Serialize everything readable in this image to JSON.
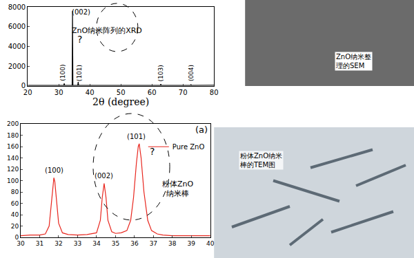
{
  "chart_data": [
    {
      "type": "line",
      "xlabel": "2θ (degree)",
      "x": [
        20,
        31.6,
        31.77,
        31.9,
        34.3,
        34.42,
        34.55,
        36.1,
        36.25,
        36.4,
        62.7,
        62.86,
        63.0,
        72.4,
        72.56,
        72.7,
        80
      ],
      "values": [
        60,
        60,
        250,
        60,
        60,
        7600,
        60,
        60,
        400,
        60,
        60,
        180,
        60,
        60,
        150,
        60,
        80
      ],
      "color": "#000000",
      "xlim": [
        20,
        80
      ],
      "xticks": [
        20,
        30,
        40,
        50,
        60,
        70,
        80
      ],
      "ylim": [
        0,
        8000
      ],
      "yticks": [
        0,
        2000,
        4000,
        6000,
        8000
      ],
      "grid": false,
      "annotations": [
        {
          "text": "ZnO纳米阵列的XRD",
          "x": 45.5,
          "y": 5600
        },
        {
          "text": "(002)",
          "x": 37.2,
          "y": 7500
        },
        {
          "text": "?",
          "x": 36.8,
          "y": 4700
        },
        {
          "text": "(100)",
          "x": 31.4,
          "y": 1300
        },
        {
          "text": "(101)",
          "x": 36.6,
          "y": 1300
        },
        {
          "text": "(103)",
          "x": 62.9,
          "y": 1300
        },
        {
          "text": "(004)",
          "x": 72.6,
          "y": 1300
        }
      ]
    },
    {
      "type": "line",
      "x": [
        30,
        30.5,
        31,
        31.3,
        31.5,
        31.6,
        31.7,
        31.75,
        31.8,
        31.9,
        32.0,
        32.2,
        32.5,
        33,
        33.5,
        34.0,
        34.2,
        34.3,
        34.4,
        34.5,
        34.6,
        34.8,
        35.0,
        35.3,
        35.6,
        35.8,
        35.95,
        36.1,
        36.2,
        36.25,
        36.35,
        36.5,
        36.7,
        36.9,
        37.2,
        37.5,
        38,
        38.5,
        39,
        39.5,
        40
      ],
      "series": [
        {
          "name": "Pure ZnO",
          "color": "#e8261e",
          "values": [
            3,
            4,
            4,
            6,
            20,
            55,
            95,
            105,
            98,
            60,
            25,
            8,
            5,
            4,
            5,
            8,
            30,
            70,
            95,
            70,
            30,
            10,
            7,
            8,
            12,
            30,
            70,
            130,
            160,
            165,
            140,
            80,
            30,
            12,
            6,
            4,
            3,
            3,
            3,
            3,
            3
          ]
        }
      ],
      "xlim": [
        30,
        40
      ],
      "xticks": [
        30,
        31,
        32,
        33,
        34,
        35,
        36,
        37,
        38,
        39,
        40
      ],
      "ylim": [
        0,
        200
      ],
      "yticks": [
        0,
        20,
        40,
        60,
        80,
        100,
        120,
        140,
        160,
        180,
        200
      ],
      "grid": false,
      "legend": "top right",
      "annotations": [
        {
          "text": "(100)",
          "x": 31.75,
          "y": 118
        },
        {
          "text": "(002)",
          "x": 34.4,
          "y": 108
        },
        {
          "text": "(101)",
          "x": 36.1,
          "y": 178
        },
        {
          "text": "?",
          "x": 36.95,
          "y": 152
        },
        {
          "text": "粉体ZnO\n纳米棒",
          "x": 38.3,
          "y": 85
        },
        {
          "text": "(a)",
          "x": 39.55,
          "y": 190
        }
      ]
    }
  ],
  "images": [
    {
      "label": "ZnO纳米整\n理的SEM"
    },
    {
      "label": "粉体ZnO纳米\n棒的TEM图"
    }
  ]
}
